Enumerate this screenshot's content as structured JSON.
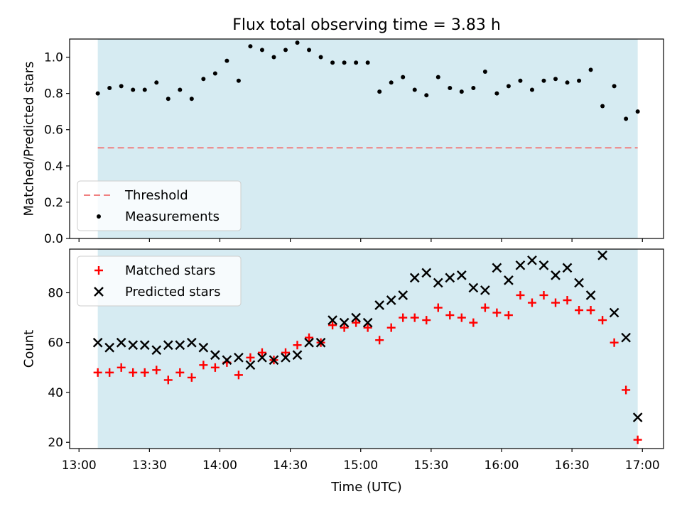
{
  "chart_data": {
    "title": "Flux total observing time = 3.83 h",
    "xlabel": "Time (UTC)",
    "x_tick_labels": [
      "13:00",
      "13:30",
      "14:00",
      "14:30",
      "15:00",
      "15:30",
      "16:00",
      "16:30",
      "17:00"
    ],
    "x_range": [
      "12:56",
      "17:09"
    ],
    "shaded_interval": [
      "13:08",
      "16:58"
    ],
    "shade_color": "#add8e6",
    "x": [
      "13:08",
      "13:13",
      "13:18",
      "13:23",
      "13:28",
      "13:33",
      "13:38",
      "13:43",
      "13:48",
      "13:53",
      "13:58",
      "14:03",
      "14:08",
      "14:13",
      "14:18",
      "14:23",
      "14:28",
      "14:33",
      "14:38",
      "14:43",
      "14:48",
      "14:53",
      "14:58",
      "15:03",
      "15:08",
      "15:13",
      "15:18",
      "15:23",
      "15:28",
      "15:33",
      "15:38",
      "15:43",
      "15:48",
      "15:53",
      "15:58",
      "16:03",
      "16:08",
      "16:13",
      "16:18",
      "16:23",
      "16:28",
      "16:33",
      "16:38",
      "16:43",
      "16:48",
      "16:53",
      "16:58"
    ],
    "panels": [
      {
        "type": "scatter",
        "ylabel": "Matched/Predicted stars",
        "ylim": [
          0,
          1.1
        ],
        "y_tick_labels": [
          "0.0",
          "0.2",
          "0.4",
          "0.6",
          "0.8",
          "1.0"
        ],
        "grid": false,
        "legend_position": "lower-left",
        "threshold": {
          "name": "Threshold",
          "value": 0.5,
          "color": "#f08080",
          "style": "dashed"
        },
        "series": [
          {
            "name": "Measurements",
            "marker": "dot",
            "color": "#000000",
            "values": [
              0.8,
              0.83,
              0.84,
              0.82,
              0.82,
              0.86,
              0.77,
              0.82,
              0.77,
              0.88,
              0.91,
              0.98,
              0.87,
              1.06,
              1.04,
              1.0,
              1.04,
              1.08,
              1.04,
              1.0,
              0.97,
              0.97,
              0.97,
              0.97,
              0.81,
              0.86,
              0.89,
              0.82,
              0.79,
              0.89,
              0.83,
              0.81,
              0.83,
              0.92,
              0.8,
              0.84,
              0.87,
              0.82,
              0.87,
              0.88,
              0.86,
              0.87,
              0.93,
              0.73,
              0.84,
              0.66,
              0.7
            ]
          }
        ]
      },
      {
        "type": "scatter",
        "ylabel": "Count",
        "ylim": [
          17.5,
          97.5
        ],
        "y_tick_labels": [
          "20",
          "40",
          "60",
          "80"
        ],
        "grid": false,
        "legend_position": "upper-left",
        "series": [
          {
            "name": "Matched stars",
            "marker": "plus",
            "color": "#ff0000",
            "values": [
              48,
              48,
              50,
              48,
              48,
              49,
              45,
              48,
              46,
              51,
              50,
              52,
              47,
              54,
              56,
              53,
              56,
              59,
              62,
              60,
              67,
              66,
              68,
              66,
              61,
              66,
              70,
              70,
              69,
              74,
              71,
              70,
              68,
              74,
              72,
              71,
              79,
              76,
              79,
              76,
              77,
              73,
              73,
              69,
              60,
              41,
              21
            ]
          },
          {
            "name": "Predicted stars",
            "marker": "x",
            "color": "#000000",
            "values": [
              60,
              58,
              60,
              59,
              59,
              57,
              59,
              59,
              60,
              58,
              55,
              53,
              54,
              51,
              54,
              53,
              54,
              55,
              60,
              60,
              69,
              68,
              70,
              68,
              75,
              77,
              79,
              86,
              88,
              84,
              86,
              87,
              82,
              81,
              90,
              85,
              91,
              93,
              91,
              87,
              90,
              84,
              79,
              95,
              72,
              62,
              30
            ]
          }
        ]
      }
    ]
  }
}
